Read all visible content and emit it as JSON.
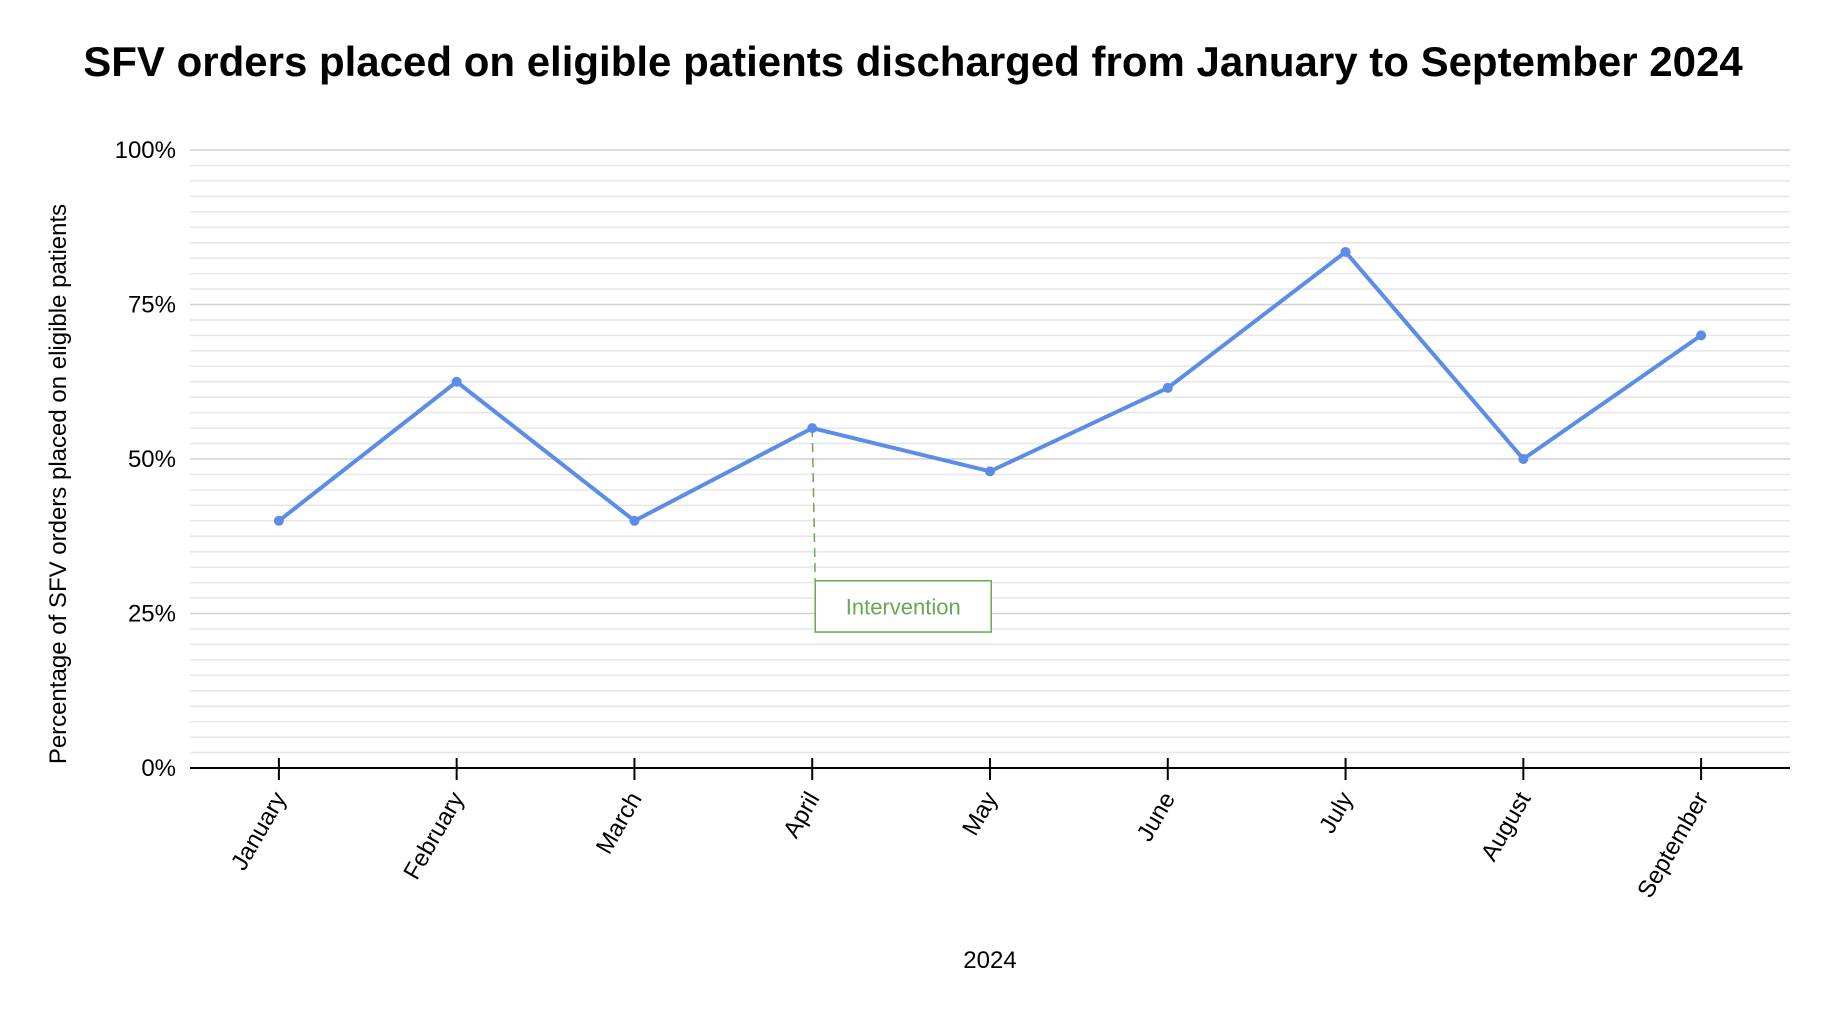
{
  "chart_data": {
    "type": "line",
    "title": "SFV orders placed on eligible patients discharged from January to September 2024",
    "xlabel": "2024",
    "ylabel": "Percentage of SFV orders placed on eligible patients",
    "categories": [
      "January",
      "February",
      "March",
      "April",
      "May",
      "June",
      "July",
      "August",
      "September"
    ],
    "series": [
      {
        "values": [
          40,
          62.5,
          40,
          55,
          48,
          61.5,
          83.5,
          50,
          70
        ],
        "color": "#5b8de8"
      }
    ],
    "ylim": [
      0,
      100
    ],
    "yticks": [
      0,
      25,
      50,
      75,
      100
    ],
    "ytick_labels": [
      "0%",
      "25%",
      "50%",
      "75%",
      "100%"
    ],
    "grid": true,
    "annotation": {
      "category": "April",
      "label": "Intervention",
      "color": "#6aa84f"
    }
  }
}
